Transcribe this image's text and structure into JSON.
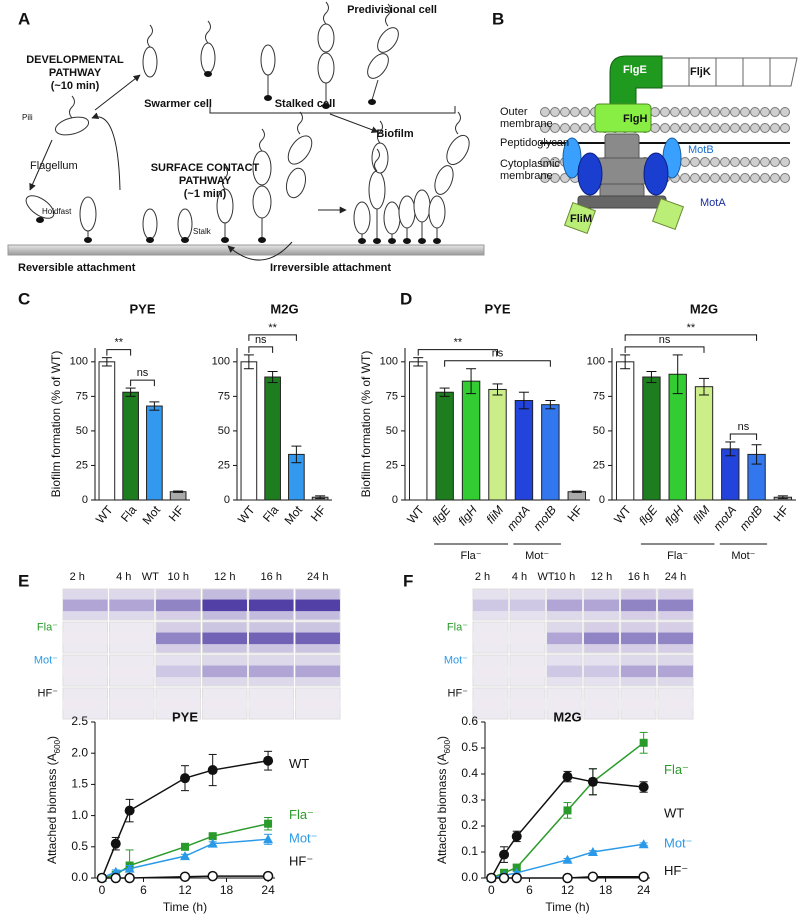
{
  "panel_labels": [
    "A",
    "B",
    "C",
    "D",
    "E",
    "F"
  ],
  "diagram_a": {
    "developmental_pathway": [
      "DEVELOPMENTAL",
      "PATHWAY",
      "(~10 min)"
    ],
    "surface_contact_pathway": [
      "SURFACE CONTACT",
      "PATHWAY",
      "(~1 min)"
    ],
    "predivisional_cell": "Predivisional cell",
    "swarmer_cell": "Swarmer cell",
    "stalked_cell": "Stalked cell",
    "biofilm": "Biofilm",
    "pili": "Pili",
    "flagellum": "Flagellum",
    "holdfast": "Holdfast",
    "stalk": "Stalk",
    "reversible_attachment": "Reversible attachment",
    "irreversible_attachment": "Irreversible attachment"
  },
  "diagram_b": {
    "flge": "FlgE",
    "fljk": "FljK",
    "outer_membrane": [
      "Outer",
      "membrane"
    ],
    "flgh": "FlgH",
    "peptidoglycan": "Peptidoglycan",
    "cytoplasmic_membrane": [
      "Cytoplasmic",
      "membrane"
    ],
    "motb": "MotB",
    "mota": "MotA",
    "flim": "FliM"
  },
  "photos": [
    {
      "columns": [
        "2 h",
        "4 h",
        "10 h",
        "12 h",
        "16 h",
        "24 h"
      ],
      "rows": [
        "WT",
        "Fla⁻",
        "Mot⁻",
        "HF⁻"
      ],
      "row_colors": [
        "#111111",
        "#2a9a2a",
        "#2a9ae8",
        "#111111"
      ]
    },
    {
      "columns": [
        "2 h",
        "4 h",
        "10 h",
        "12 h",
        "16 h",
        "24 h"
      ],
      "rows": [
        "WT",
        "Fla⁻",
        "Mot⁻",
        "HF⁻"
      ],
      "row_colors": [
        "#111111",
        "#2a9a2a",
        "#2a9ae8",
        "#111111"
      ]
    }
  ],
  "chart_data": [
    {
      "type": "bar",
      "title": "PYE",
      "y_label": "Biofilm formation (% of WT)",
      "categories": [
        "WT",
        "Fla",
        "Mot",
        "HF"
      ],
      "values": [
        100,
        78,
        68,
        6
      ],
      "errors": [
        3,
        3,
        3,
        0.5
      ],
      "colors": [
        "#ffffff",
        "#1e7d1e",
        "#3399ee",
        "#aaaaaa"
      ],
      "ylim": [
        0,
        110
      ],
      "yticks": [
        0,
        25,
        50,
        75,
        100
      ],
      "annotations": [
        {
          "text": "**",
          "between": [
            "WT",
            "Fla"
          ]
        },
        {
          "text": "ns",
          "between": [
            "Fla",
            "Mot"
          ]
        }
      ]
    },
    {
      "type": "bar",
      "title": "M2G",
      "categories": [
        "WT",
        "Fla",
        "Mot",
        "HF"
      ],
      "values": [
        100,
        89,
        33,
        2
      ],
      "errors": [
        5,
        4,
        6,
        1
      ],
      "colors": [
        "#ffffff",
        "#1e7d1e",
        "#3399ee",
        "#aaaaaa"
      ],
      "ylim": [
        0,
        110
      ],
      "yticks": [
        0,
        25,
        50,
        75,
        100
      ],
      "annotations": [
        {
          "text": "ns",
          "between": [
            "WT",
            "Fla"
          ]
        },
        {
          "text": "**",
          "between": [
            "WT",
            "Mot"
          ]
        }
      ]
    },
    {
      "type": "bar",
      "title": "PYE",
      "y_label": "Biofilm formation (% of WT)",
      "categories": [
        "WT",
        "flgE",
        "flgH",
        "fliM",
        "motA",
        "motB",
        "HF"
      ],
      "values": [
        100,
        78,
        86,
        80,
        72,
        69,
        6
      ],
      "errors": [
        3,
        3,
        9,
        4,
        6,
        3,
        0.5
      ],
      "colors": [
        "#ffffff",
        "#1e7d1e",
        "#33cc33",
        "#ccee88",
        "#2244dd",
        "#3377ee",
        "#aaaaaa"
      ],
      "ylim": [
        0,
        110
      ],
      "yticks": [
        0,
        25,
        50,
        75,
        100
      ],
      "groups": [
        {
          "label": "Fla⁻",
          "members": [
            "flgE",
            "flgH",
            "fliM"
          ]
        },
        {
          "label": "Mot⁻",
          "members": [
            "motA",
            "motB"
          ]
        }
      ],
      "annotations": [
        {
          "text": "**",
          "between": [
            "WT",
            "fliM"
          ]
        },
        {
          "text": "ns",
          "between": [
            "flgE",
            "motB"
          ]
        }
      ]
    },
    {
      "type": "bar",
      "title": "M2G",
      "categories": [
        "WT",
        "flgE",
        "flgH",
        "fliM",
        "motA",
        "motB",
        "HF"
      ],
      "values": [
        100,
        89,
        91,
        82,
        37,
        33,
        2
      ],
      "errors": [
        5,
        4,
        14,
        6,
        5,
        7,
        1
      ],
      "colors": [
        "#ffffff",
        "#1e7d1e",
        "#33cc33",
        "#ccee88",
        "#2244dd",
        "#3377ee",
        "#aaaaaa"
      ],
      "ylim": [
        0,
        110
      ],
      "yticks": [
        0,
        25,
        50,
        75,
        100
      ],
      "groups": [
        {
          "label": "Fla⁻",
          "members": [
            "flgE",
            "flgH",
            "fliM"
          ]
        },
        {
          "label": "Mot⁻",
          "members": [
            "motA",
            "motB"
          ]
        }
      ],
      "annotations": [
        {
          "text": "ns",
          "between": [
            "WT",
            "fliM"
          ]
        },
        {
          "text": "**",
          "between": [
            "WT",
            "motB"
          ]
        },
        {
          "text": "ns",
          "between": [
            "motA",
            "motB"
          ]
        }
      ]
    },
    {
      "type": "line",
      "title": "PYE",
      "x_label": "Time (h)",
      "y_label": "Attached biomass (A",
      "y_label_sub": "600",
      "y_label_end": ")",
      "x": [
        0,
        2,
        4,
        12,
        16,
        24
      ],
      "xlim": [
        -1,
        25
      ],
      "xticks": [
        0,
        6,
        12,
        18,
        24
      ],
      "ylim": [
        0,
        2.5
      ],
      "yticks": [
        {
          "value": 0,
          "label": "0.0"
        },
        {
          "value": 0.5,
          "label": "0.5"
        },
        {
          "value": 1,
          "label": "1.0"
        },
        {
          "value": 1.5,
          "label": "1.5"
        },
        {
          "value": 2,
          "label": "2.0"
        },
        {
          "value": 2.5,
          "label": "2.5"
        }
      ],
      "series": [
        {
          "name": "WT",
          "color": "#111111",
          "marker": "circle",
          "values": [
            0,
            0.55,
            1.08,
            1.6,
            1.73,
            1.88
          ],
          "errors": [
            0,
            0.1,
            0.18,
            0.2,
            0.25,
            0.15
          ]
        },
        {
          "name": "Fla⁻",
          "color": "#2a9a2a",
          "marker": "square",
          "values": [
            0,
            0.05,
            0.2,
            0.5,
            0.67,
            0.87
          ],
          "errors": [
            0,
            0.03,
            0.25,
            0.03,
            0.03,
            0.1
          ]
        },
        {
          "name": "Mot⁻",
          "color": "#2a9ae8",
          "marker": "triangle",
          "values": [
            0,
            0.1,
            0.15,
            0.35,
            0.55,
            0.62
          ],
          "errors": [
            0,
            0.03,
            0.05,
            0.03,
            0.03,
            0.08
          ]
        },
        {
          "name": "HF⁻",
          "color": "#111111",
          "marker": "open-circle",
          "values": [
            0,
            0,
            0,
            0.02,
            0.03,
            0.03
          ],
          "errors": [
            0,
            0,
            0,
            0,
            0,
            0
          ]
        }
      ]
    },
    {
      "type": "line",
      "title": "M2G",
      "x_label": "Time (h)",
      "y_label": "Attached biomass (A",
      "y_label_sub": "600",
      "y_label_end": ")",
      "x": [
        0,
        2,
        4,
        12,
        16,
        24
      ],
      "xlim": [
        -1,
        25
      ],
      "xticks": [
        0,
        6,
        12,
        18,
        24
      ],
      "ylim": [
        0,
        0.6
      ],
      "yticks": [
        {
          "value": 0,
          "label": "0.0"
        },
        0.1,
        0.2,
        0.3,
        0.4,
        0.5,
        0.6
      ],
      "series": [
        {
          "name": "Fla⁻",
          "color": "#2a9a2a",
          "marker": "square",
          "values": [
            0,
            0.02,
            0.04,
            0.26,
            0.37,
            0.52
          ],
          "errors": [
            0,
            0.01,
            0.01,
            0.03,
            0.05,
            0.04
          ]
        },
        {
          "name": "WT",
          "color": "#111111",
          "marker": "circle",
          "values": [
            0,
            0.09,
            0.16,
            0.39,
            0.37,
            0.35
          ],
          "errors": [
            0,
            0.03,
            0.02,
            0.02,
            0.05,
            0.02
          ]
        },
        {
          "name": "Mot⁻",
          "color": "#2a9ae8",
          "marker": "triangle",
          "values": [
            0,
            0.01,
            0.02,
            0.07,
            0.1,
            0.13
          ],
          "errors": [
            0,
            0.005,
            0.005,
            0.005,
            0.005,
            0.005
          ]
        },
        {
          "name": "HF⁻",
          "color": "#111111",
          "marker": "open-circle",
          "values": [
            0,
            0,
            0,
            0,
            0.005,
            0.005
          ],
          "errors": [
            0,
            0,
            0,
            0,
            0,
            0
          ]
        }
      ]
    }
  ]
}
